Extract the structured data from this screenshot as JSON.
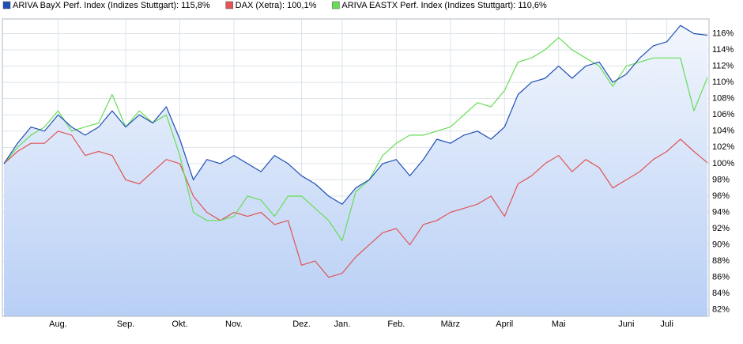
{
  "chart_data": {
    "type": "line",
    "categories": [
      null,
      null,
      null,
      null,
      "Aug.",
      null,
      null,
      null,
      null,
      "Sep.",
      null,
      null,
      null,
      "Okt.",
      null,
      null,
      null,
      "Nov.",
      null,
      null,
      null,
      null,
      "Dez.",
      null,
      null,
      "Jan.",
      null,
      null,
      null,
      "Feb.",
      null,
      null,
      null,
      "März",
      null,
      null,
      null,
      "April",
      null,
      null,
      null,
      "Mai",
      null,
      null,
      null,
      null,
      "Juni",
      null,
      null,
      "Juli",
      null,
      null,
      null
    ],
    "series": [
      {
        "name": "ARIVA BayX Perf. Index (Indizes Stuttgart): 115,8%",
        "color": "#1f4fb4",
        "values": [
          100,
          102.5,
          104.5,
          104,
          106,
          104.5,
          103.5,
          104.5,
          106.5,
          104.5,
          106,
          105,
          107,
          103,
          98,
          100.5,
          100,
          101,
          100,
          99,
          101,
          100,
          98.5,
          97.5,
          96,
          95,
          97,
          98,
          100,
          100.5,
          98.5,
          100.5,
          103,
          102.5,
          103.5,
          104,
          103,
          104.5,
          108.5,
          110,
          110.5,
          112,
          110.5,
          112,
          112.5,
          110,
          111,
          113,
          114.5,
          115,
          117,
          116,
          115.8
        ]
      },
      {
        "name": "DAX (Xetra): 100,1%",
        "color": "#e05555",
        "values": [
          100,
          101.5,
          102.5,
          102.5,
          104,
          103.5,
          101,
          101.5,
          101,
          98,
          97.5,
          99,
          100.5,
          100,
          96,
          94,
          93,
          94,
          93.5,
          94,
          92.5,
          93,
          87.5,
          88,
          86,
          86.5,
          88.5,
          90,
          91.5,
          92,
          90,
          92.5,
          93,
          94,
          94.5,
          95,
          96,
          93.5,
          97.5,
          98.5,
          100,
          101,
          99,
          100.5,
          99.5,
          97,
          98,
          99,
          100.5,
          101.5,
          103,
          101.5,
          100.1
        ]
      },
      {
        "name": "ARIVA EASTX Perf. Index (Indizes Stuttgart): 110,6%",
        "color": "#66dd55",
        "values": [
          100,
          102,
          103.5,
          104.5,
          106.5,
          104,
          104.5,
          105,
          108.5,
          104.5,
          106.5,
          105,
          106,
          101,
          94,
          93,
          93,
          93.5,
          96,
          95.5,
          93.5,
          96,
          96,
          94.5,
          93,
          90.5,
          96.5,
          98,
          101,
          102.5,
          103.5,
          103.5,
          104,
          104.5,
          106,
          107.5,
          107,
          109,
          112.5,
          113,
          114,
          115.5,
          114,
          113,
          112,
          109.5,
          112,
          112.5,
          113,
          113,
          113,
          106.5,
          110.6
        ]
      }
    ],
    "ylim": [
      81.2,
      117.8
    ],
    "yticks": [
      {
        "value": 82,
        "label": "82%"
      },
      {
        "value": 84,
        "label": "84%"
      },
      {
        "value": 86,
        "label": "86%"
      },
      {
        "value": 88,
        "label": "88%"
      },
      {
        "value": 90,
        "label": "90%"
      },
      {
        "value": 92,
        "label": "92%"
      },
      {
        "value": 94,
        "label": "94%"
      },
      {
        "value": 96,
        "label": "96%"
      },
      {
        "value": 98,
        "label": "98%"
      },
      {
        "value": 100,
        "label": "100%"
      },
      {
        "value": 102,
        "label": "102%"
      },
      {
        "value": 104,
        "label": "104%"
      },
      {
        "value": 106,
        "label": "106%"
      },
      {
        "value": 108,
        "label": "108%"
      },
      {
        "value": 110,
        "label": "110%"
      },
      {
        "value": 112,
        "label": "112%"
      },
      {
        "value": 114,
        "label": "114%"
      },
      {
        "value": 116,
        "label": "116%"
      }
    ],
    "grid": true,
    "fill_series": 0
  }
}
